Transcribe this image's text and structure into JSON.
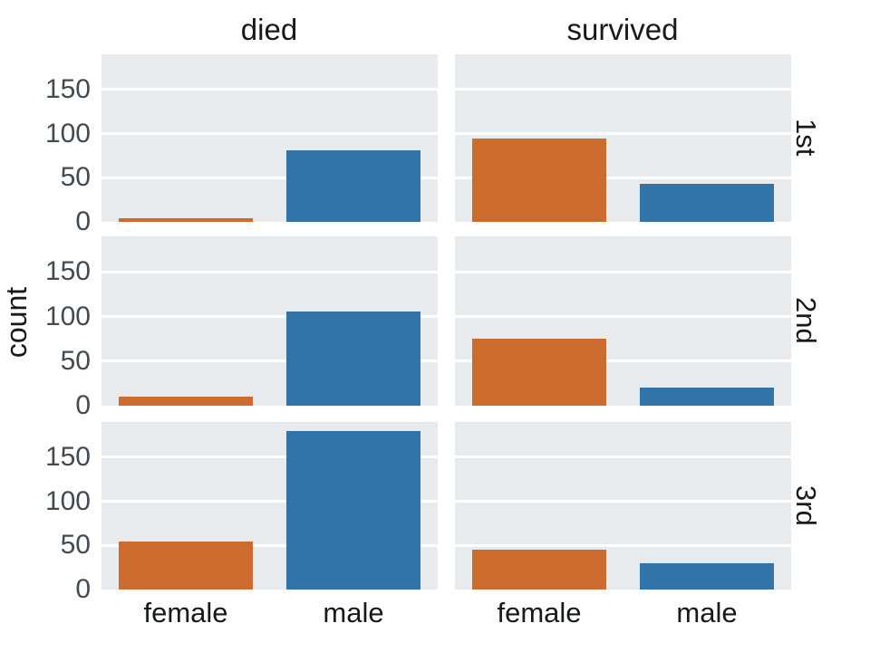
{
  "chart_data": {
    "type": "bar",
    "description": "Faceted count bar chart (catplot): columns = outcome, rows = passenger class, bars = sex",
    "col_titles": [
      "died",
      "survived"
    ],
    "row_titles": [
      "1st",
      "2nd",
      "3rd"
    ],
    "categories": [
      "female",
      "male"
    ],
    "series_colors": {
      "female": "#cd6a2e",
      "male": "#3274a8"
    },
    "ylabel": "count",
    "yticks": [
      0,
      50,
      100,
      150
    ],
    "ylim": [
      0,
      190
    ],
    "grid": "horizontal-white-on-gray",
    "legend": "none",
    "panels": [
      {
        "row": "1st",
        "col": "died",
        "values": {
          "female": 4,
          "male": 81
        }
      },
      {
        "row": "1st",
        "col": "survived",
        "values": {
          "female": 95,
          "male": 43
        }
      },
      {
        "row": "2nd",
        "col": "died",
        "values": {
          "female": 10,
          "male": 106
        }
      },
      {
        "row": "2nd",
        "col": "survived",
        "values": {
          "female": 75,
          "male": 20
        }
      },
      {
        "row": "3rd",
        "col": "died",
        "values": {
          "female": 54,
          "male": 180
        }
      },
      {
        "row": "3rd",
        "col": "survived",
        "values": {
          "female": 45,
          "male": 30
        }
      }
    ],
    "colors": {
      "panel_background": "#e8ebed",
      "gridline": "#ffffff",
      "tick_text": "#424a52",
      "label_text": "#17191c",
      "figure_background": "#ffffff"
    }
  }
}
